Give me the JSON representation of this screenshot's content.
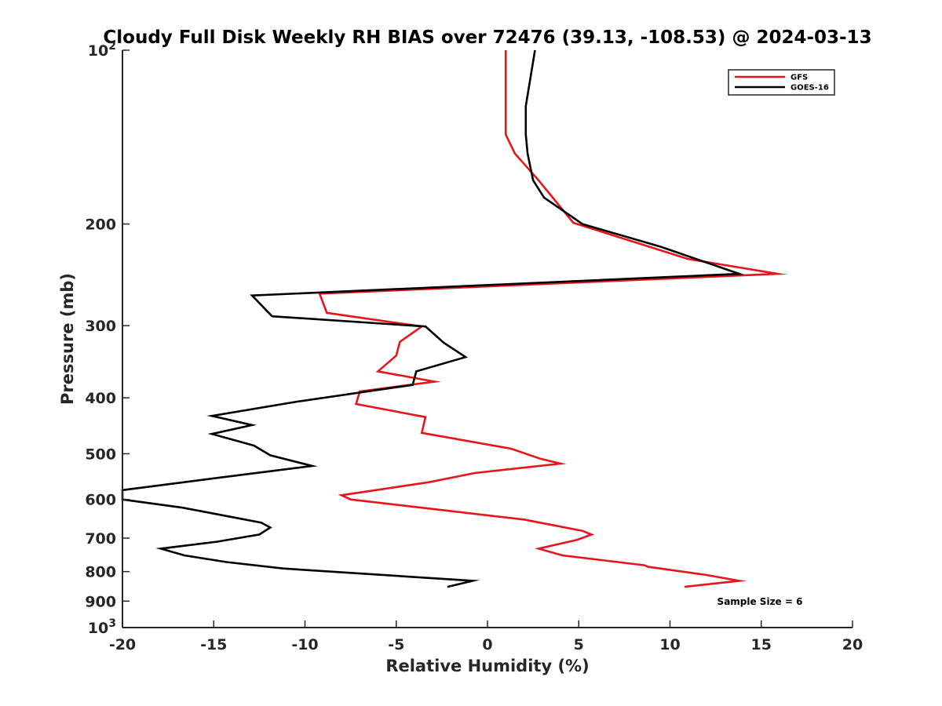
{
  "chart_data": {
    "type": "line",
    "title": "Cloudy Full Disk Weekly RH BIAS over 72476 (39.13, -108.53) @ 2024-03-13",
    "xlabel": "Relative Humidity (%)",
    "ylabel": "Pressure (mb)",
    "xlim": [
      -20,
      20
    ],
    "ylim": [
      100,
      1000
    ],
    "yscale": "log",
    "y_reversed": true,
    "x_ticks": [
      "-20",
      "-15",
      "-10",
      "-5",
      "0",
      "5",
      "10",
      "15",
      "20"
    ],
    "y_ticks": [
      {
        "value": 100,
        "base": "10",
        "exp": "2"
      },
      {
        "value": 200,
        "label": "200"
      },
      {
        "value": 300,
        "label": "300"
      },
      {
        "value": 400,
        "label": "400"
      },
      {
        "value": 500,
        "label": "500"
      },
      {
        "value": 600,
        "label": "600"
      },
      {
        "value": 700,
        "label": "700"
      },
      {
        "value": 800,
        "label": "800"
      },
      {
        "value": 900,
        "label": "900"
      },
      {
        "value": 1000,
        "base": "10",
        "exp": "3"
      }
    ],
    "grid": false,
    "legend_position": "top-right",
    "series": [
      {
        "name": "GFS",
        "color": "#e8141c",
        "x": [
          1.0,
          1.0,
          1.0,
          1.5,
          2.8,
          4.7,
          11.0,
          15.9,
          -9.2,
          -8.8,
          -3.6,
          -4.8,
          -5.0,
          -6.0,
          -2.9,
          -7.0,
          -7.2,
          -3.4,
          -3.6,
          1.3,
          2.9,
          4.0,
          -0.7,
          -3.2,
          -8.0,
          -7.5,
          2.0,
          5.2,
          5.7,
          4.9,
          2.8,
          4.1,
          8.6,
          8.8,
          11.9,
          13.8,
          10.8
        ],
        "y": [
          100,
          125,
          140,
          151,
          168,
          199,
          230,
          244,
          264,
          285,
          301,
          320,
          338,
          360,
          375,
          390,
          410,
          432,
          460,
          490,
          510,
          520,
          540,
          560,
          590,
          600,
          650,
          680,
          690,
          705,
          730,
          750,
          780,
          785,
          810,
          830,
          850
        ]
      },
      {
        "name": "GOES-16",
        "color": "#000000",
        "x": [
          2.6,
          2.1,
          2.1,
          2.2,
          2.5,
          3.1,
          5.2,
          9.5,
          13.8,
          -12.9,
          -11.8,
          -3.4,
          -2.4,
          -1.2,
          -3.9,
          -4.1,
          -10.4,
          -15.1,
          -12.9,
          -15.1,
          -12.8,
          -11.9,
          -9.6,
          -14.7,
          -20.0,
          -20.0,
          -16.7,
          -12.4,
          -11.9,
          -12.5,
          -14.8,
          -17.9,
          -16.6,
          -14.3,
          -11.2,
          -0.8,
          -2.2
        ],
        "y": [
          100,
          125,
          140,
          151,
          168,
          180,
          200,
          219,
          244,
          266,
          289,
          301,
          321,
          340,
          360,
          380,
          406,
          430,
          446,
          462,
          484,
          503,
          525,
          550,
          578,
          600,
          620,
          658,
          671,
          690,
          710,
          730,
          750,
          770,
          790,
          830,
          850
        ]
      }
    ],
    "annotations": [
      "Sample Size = 6"
    ]
  }
}
